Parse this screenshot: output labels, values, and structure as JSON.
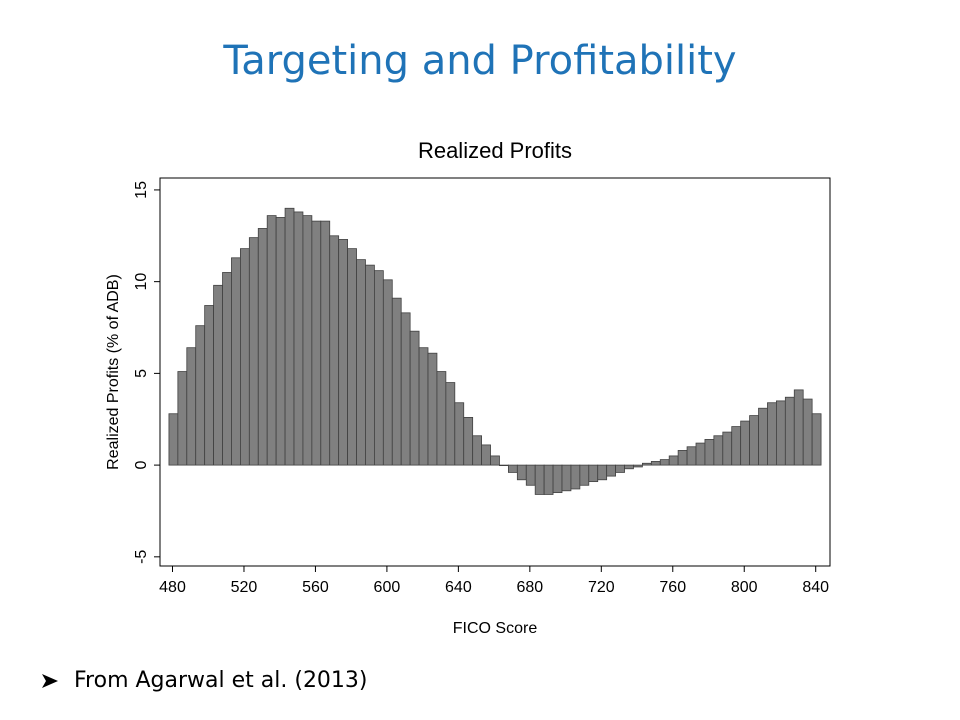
{
  "slide_title": "Targeting and Profitability",
  "footer": "From Agarwal et al. (2013)",
  "chart_data": {
    "type": "histogram",
    "title": "Realized Profits",
    "xlabel": "FICO Score",
    "ylabel": "Realized Profits (% of ADB)",
    "bins": [
      478,
      483,
      488,
      493,
      498,
      503,
      508,
      513,
      518,
      523,
      528,
      533,
      538,
      543,
      548,
      553,
      558,
      563,
      568,
      573,
      578,
      583,
      588,
      593,
      598,
      603,
      608,
      613,
      618,
      623,
      628,
      633,
      638,
      643,
      648,
      653,
      658,
      663,
      668,
      673,
      678,
      683,
      688,
      693,
      698,
      703,
      708,
      713,
      718,
      723,
      728,
      733,
      738,
      743,
      748,
      753,
      758,
      763,
      768,
      773,
      778,
      783,
      788,
      793,
      798,
      803,
      808,
      813,
      818,
      823,
      828,
      833,
      838,
      843
    ],
    "values": [
      2.8,
      5.1,
      6.4,
      7.6,
      8.7,
      9.8,
      10.5,
      11.3,
      11.8,
      12.4,
      12.9,
      13.6,
      13.5,
      14.0,
      13.8,
      13.6,
      13.3,
      13.3,
      12.5,
      12.3,
      11.8,
      11.2,
      10.9,
      10.6,
      10.1,
      9.1,
      8.3,
      7.3,
      6.4,
      6.1,
      5.1,
      4.5,
      3.4,
      2.6,
      1.6,
      1.1,
      0.5,
      0.0,
      -0.4,
      -0.8,
      -1.1,
      -1.6,
      -1.6,
      -1.5,
      -1.4,
      -1.3,
      -1.1,
      -0.9,
      -0.8,
      -0.6,
      -0.4,
      -0.2,
      -0.1,
      0.1,
      0.2,
      0.3,
      0.5,
      0.8,
      1.0,
      1.2,
      1.4,
      1.6,
      1.8,
      2.1,
      2.4,
      2.7,
      3.1,
      3.4,
      3.5,
      3.7,
      4.1,
      3.6,
      2.8
    ],
    "color": "#808080",
    "xlim": [
      473,
      848
    ],
    "ylim": [
      -5.5,
      15.65
    ],
    "xticks": [
      480,
      520,
      560,
      600,
      640,
      680,
      720,
      760,
      800,
      840
    ],
    "yticks": [
      -5,
      0,
      5,
      10,
      15
    ]
  }
}
